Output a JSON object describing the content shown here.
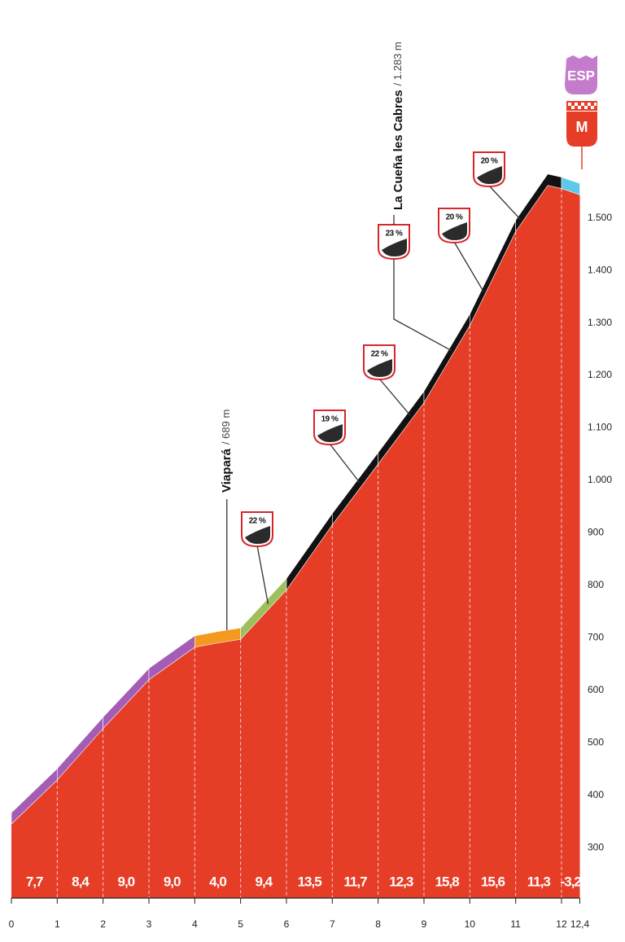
{
  "chart_data": {
    "type": "area",
    "x": [
      0,
      1,
      2,
      3,
      4,
      4.5,
      5,
      6,
      7,
      8,
      9,
      10,
      11,
      11.7,
      12,
      12.4
    ],
    "y": [
      345,
      429,
      527,
      620,
      682,
      690,
      697,
      791,
      915,
      1031,
      1148,
      1295,
      1474,
      1562,
      1556,
      1544
    ],
    "color": "#e63d27",
    "xlim": [
      0,
      12.4
    ],
    "ylim": [
      204,
      1650
    ],
    "xticks": [
      0,
      1,
      2,
      3,
      4,
      5,
      6,
      7,
      8,
      9,
      10,
      11,
      12,
      {
        "value": 12.4,
        "label": "12,4"
      }
    ],
    "yticks": [
      300,
      400,
      500,
      600,
      700,
      800,
      900,
      {
        "value": 1000,
        "label": "1.000"
      },
      {
        "value": 1100,
        "label": "1.100"
      },
      {
        "value": 1200,
        "label": "1.200"
      },
      {
        "value": 1300,
        "label": "1.300"
      },
      {
        "value": 1400,
        "label": "1.400"
      },
      {
        "value": 1500,
        "label": "1.500"
      }
    ],
    "grid": true,
    "gradients": {
      "edges": [
        0,
        1,
        2,
        3,
        4,
        5,
        6,
        7,
        8,
        9,
        10,
        11,
        12,
        12.4
      ],
      "values": [
        7.7,
        8.4,
        9.0,
        9.0,
        4.0,
        9.4,
        13.5,
        11.7,
        12.3,
        15.8,
        15.6,
        11.3,
        -3.2
      ],
      "value_labels": [
        "7,7",
        "8,4",
        "9,0",
        "9,0",
        "4,0",
        "9,4",
        "13,5",
        "11,7",
        "12,3",
        "15,8",
        "15,6",
        "11,3",
        "-3,2"
      ],
      "colors": [
        "#a45db5",
        "#a45db5",
        "#a45db5",
        "#a45db5",
        "#f39a1e",
        "#9dbf5c",
        "#111111",
        "#111111",
        "#111111",
        "#111111",
        "#111111",
        "#111111",
        "#5cc8ea"
      ]
    },
    "ramps": [
      {
        "label": "22 %",
        "x": 5.6
      },
      {
        "label": "19 %",
        "x": 7.6
      },
      {
        "label": "22 %",
        "x": 8.7
      },
      {
        "label": "23 %",
        "x": 9.6
      },
      {
        "label": "20 %",
        "x": 10.3
      },
      {
        "label": "20 %",
        "x": 11.1
      }
    ],
    "climbs": [
      {
        "name": "Viapará",
        "detail": "/ 689 m",
        "x": 4.7
      },
      {
        "name": "La Cueña les Cabres",
        "detail": "/ 1.283 m",
        "x": 8.45
      }
    ],
    "finish_badges": [
      "ESP",
      "M"
    ]
  }
}
